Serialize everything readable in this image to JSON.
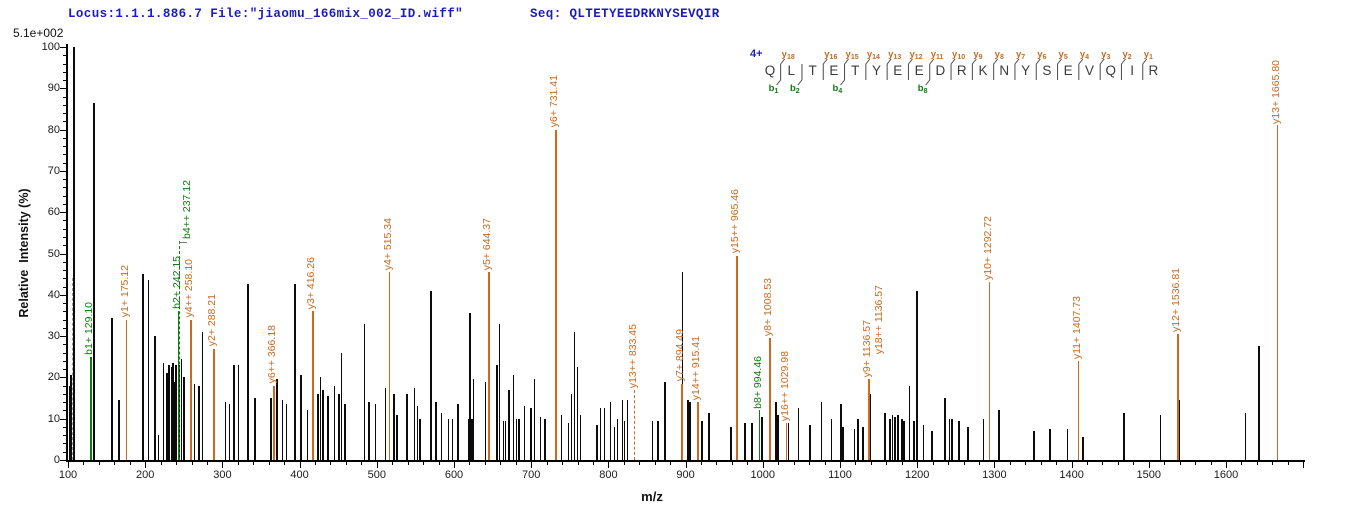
{
  "header": {
    "locus_file": "Locus:1.1.1.886.7 File:\"jiaomu_166mix_002_ID.wiff\"",
    "seq": "Seq: QLTETYEEDRKNYSEVQIR"
  },
  "y_axis": {
    "title": "Relative  Intensity (%)",
    "scale_note": "5.1e+002",
    "min": 0,
    "max": 100,
    "major": 10,
    "minor": 2
  },
  "x_axis": {
    "title": "m/z",
    "min": 100,
    "max": 1700,
    "major": 100,
    "minor": 20,
    "last_label": 1600
  },
  "peptide": {
    "charge": "4+",
    "residues": [
      "Q",
      "L",
      "T",
      "E",
      "T",
      "Y",
      "E",
      "E",
      "D",
      "R",
      "K",
      "N",
      "Y",
      "S",
      "E",
      "V",
      "Q",
      "I",
      "R"
    ],
    "gaps": [
      {
        "y": 18,
        "b": 1
      },
      {
        "y": null,
        "b": 2
      },
      {
        "y": 16,
        "b": null
      },
      {
        "y": 15,
        "b": 4
      },
      {
        "y": 14,
        "b": null
      },
      {
        "y": 13,
        "b": null
      },
      {
        "y": 12,
        "b": null
      },
      {
        "y": 11,
        "b": 8
      },
      {
        "y": 10,
        "b": null
      },
      {
        "y": 9,
        "b": null
      },
      {
        "y": 8,
        "b": null
      },
      {
        "y": 7,
        "b": null
      },
      {
        "y": 6,
        "b": null
      },
      {
        "y": 5,
        "b": null
      },
      {
        "y": 4,
        "b": null
      },
      {
        "y": 3,
        "b": null
      },
      {
        "y": 2,
        "b": null
      },
      {
        "y": 1,
        "b": null
      }
    ]
  },
  "colors": {
    "orange": "#c96a1f",
    "green": "#0d7d0d",
    "blue": "#1c1cb8",
    "gray": "#9a9a9a",
    "black": "#0b0b0b"
  },
  "chart_data": {
    "type": "mass-spectrum",
    "xlabel": "m/z",
    "ylabel": "Relative  Intensity (%)",
    "xlim": [
      100,
      1700
    ],
    "ylim": [
      0,
      100
    ],
    "base_peak_intensity": "5.1e+002",
    "peaks": [
      [
        102,
        18
      ],
      [
        104,
        20.5
      ],
      [
        108,
        100
      ],
      [
        134,
        86.5
      ],
      [
        157,
        34.5
      ],
      [
        166,
        14.5
      ],
      [
        197,
        45
      ],
      [
        204,
        43.5
      ],
      [
        213,
        30
      ],
      [
        217,
        6
      ],
      [
        224,
        23.5
      ],
      [
        228,
        21
      ],
      [
        231,
        23
      ],
      [
        234,
        22.5
      ],
      [
        236,
        23.5
      ],
      [
        238,
        19
      ],
      [
        240,
        23
      ],
      [
        244,
        23
      ],
      [
        247,
        24.5
      ],
      [
        250,
        20
      ],
      [
        264,
        18.5
      ],
      [
        270,
        18
      ],
      [
        274,
        31
      ],
      [
        304,
        14
      ],
      [
        309,
        13.5
      ],
      [
        315,
        23
      ],
      [
        321,
        23
      ],
      [
        333,
        42.5
      ],
      [
        342,
        15
      ],
      [
        363,
        15
      ],
      [
        371,
        19.5
      ],
      [
        378,
        14.5
      ],
      [
        383,
        13.5
      ],
      [
        394,
        42.5
      ],
      [
        402,
        20.5
      ],
      [
        410,
        12
      ],
      [
        424,
        16
      ],
      [
        427,
        20
      ],
      [
        430,
        17
      ],
      [
        437,
        15.5
      ],
      [
        445,
        18
      ],
      [
        451,
        16
      ],
      [
        454,
        26
      ],
      [
        459,
        13.5
      ],
      [
        484,
        33
      ],
      [
        490,
        14
      ],
      [
        498,
        13.5
      ],
      [
        511,
        17.5
      ],
      [
        522,
        16
      ],
      [
        526,
        11
      ],
      [
        539,
        16
      ],
      [
        549,
        17.5
      ],
      [
        553,
        13
      ],
      [
        556,
        10
      ],
      [
        570,
        41
      ],
      [
        577,
        14
      ],
      [
        584,
        11.5
      ],
      [
        593,
        10
      ],
      [
        598,
        10
      ],
      [
        605,
        13.5
      ],
      [
        619,
        10
      ],
      [
        621,
        35.5
      ],
      [
        623,
        10
      ],
      [
        625,
        19.5
      ],
      [
        641,
        19
      ],
      [
        656,
        23
      ],
      [
        659,
        33
      ],
      [
        664,
        9.5
      ],
      [
        667,
        9.5
      ],
      [
        671,
        17
      ],
      [
        677,
        20.5
      ],
      [
        681,
        10
      ],
      [
        684,
        10
      ],
      [
        691,
        13
      ],
      [
        700,
        12.5
      ],
      [
        704,
        19.5
      ],
      [
        712,
        10.5
      ],
      [
        718,
        10
      ],
      [
        739,
        11
      ],
      [
        748,
        9
      ],
      [
        752,
        16
      ],
      [
        756,
        31
      ],
      [
        760,
        22.5
      ],
      [
        764,
        11
      ],
      [
        785,
        8.5
      ],
      [
        790,
        12.5
      ],
      [
        795,
        12.5
      ],
      [
        803,
        14
      ],
      [
        808,
        8
      ],
      [
        812,
        10
      ],
      [
        818,
        14.5
      ],
      [
        821,
        9.5
      ],
      [
        825,
        14.5
      ],
      [
        857,
        9.5
      ],
      [
        864,
        9.5
      ],
      [
        873,
        19
      ],
      [
        896,
        45.5
      ],
      [
        903,
        14.5
      ],
      [
        906,
        14
      ],
      [
        921,
        9.5
      ],
      [
        930,
        11.5
      ],
      [
        959,
        8
      ],
      [
        977,
        9
      ],
      [
        986,
        9
      ],
      [
        999,
        10.5
      ],
      [
        1017,
        14
      ],
      [
        1020,
        11
      ],
      [
        1033,
        9
      ],
      [
        1046,
        12.5
      ],
      [
        1061,
        8.5
      ],
      [
        1076,
        14
      ],
      [
        1089,
        10
      ],
      [
        1101,
        13.5
      ],
      [
        1104,
        8
      ],
      [
        1119,
        7.5
      ],
      [
        1123,
        10
      ],
      [
        1130,
        8
      ],
      [
        1139,
        16
      ],
      [
        1158,
        11.5
      ],
      [
        1165,
        10
      ],
      [
        1168,
        11
      ],
      [
        1171,
        10.5
      ],
      [
        1175,
        11
      ],
      [
        1180,
        10
      ],
      [
        1183,
        9.5
      ],
      [
        1190,
        18
      ],
      [
        1196,
        9.5
      ],
      [
        1200,
        41
      ],
      [
        1208,
        8.5
      ],
      [
        1219,
        7
      ],
      [
        1236,
        15
      ],
      [
        1242,
        10
      ],
      [
        1245,
        10
      ],
      [
        1254,
        9.5
      ],
      [
        1266,
        8
      ],
      [
        1286,
        10
      ],
      [
        1306,
        12
      ],
      [
        1351,
        7
      ],
      [
        1372,
        7.5
      ],
      [
        1395,
        7.5
      ],
      [
        1415,
        5.5
      ],
      [
        1468,
        11.4
      ],
      [
        1515,
        11
      ],
      [
        1540,
        14.5
      ],
      [
        1625,
        11.5
      ],
      [
        1643,
        27.5
      ]
    ],
    "annotations": [
      {
        "label": "",
        "mz": 105,
        "pct": 44,
        "color": "gray",
        "dashed": true
      },
      {
        "label": "b1+ 129.10",
        "mz": 129.1,
        "pct": 25,
        "color": "green"
      },
      {
        "label": "y1+ 175.12",
        "mz": 175.12,
        "pct": 34,
        "color": "orange"
      },
      {
        "label": "b4++ 237.12",
        "mz": 237.12,
        "pct": 53,
        "color": "green",
        "dashed": true,
        "line_dx": 5,
        "label_dx": 14
      },
      {
        "label": "b2+ 242.15",
        "mz": 242.15,
        "pct": 36,
        "color": "green",
        "connector_at_pct": 52.5
      },
      {
        "label": "y4++ 258.10",
        "mz": 258.1,
        "pct": 34,
        "color": "orange"
      },
      {
        "label": "y2+ 288.21",
        "mz": 288.21,
        "pct": 27,
        "color": "orange"
      },
      {
        "label": "y6++ 366.18",
        "mz": 366.18,
        "pct": 18,
        "color": "orange"
      },
      {
        "label": "y3+ 416.26",
        "mz": 416.26,
        "pct": 36,
        "color": "orange"
      },
      {
        "label": "y4+ 515.34",
        "mz": 515.34,
        "pct": 45.5,
        "color": "orange"
      },
      {
        "label": "y5+ 644.37",
        "mz": 644.37,
        "pct": 45.5,
        "color": "orange"
      },
      {
        "label": "y6+ 731.41",
        "mz": 731.41,
        "pct": 80,
        "color": "orange"
      },
      {
        "label": "y13++ 833.45",
        "mz": 833.45,
        "pct": 17,
        "color": "orange",
        "dashed": true
      },
      {
        "label": "y7+ 894.49",
        "mz": 894.49,
        "pct": 18.5,
        "color": "orange"
      },
      {
        "label": "y14++ 915.41",
        "mz": 915.41,
        "pct": 14,
        "color": "orange"
      },
      {
        "label": "y15++ 965.46",
        "mz": 965.46,
        "pct": 49.5,
        "color": "orange"
      },
      {
        "label": "b8+ 994.46",
        "mz": 994.46,
        "pct": 12,
        "color": "green"
      },
      {
        "label": "y8+ 1008.53",
        "mz": 1008.53,
        "pct": 29.5,
        "color": "orange"
      },
      {
        "label": "y16++ 1029.98",
        "mz": 1029.98,
        "pct": 9,
        "color": "orange"
      },
      {
        "label": "y9+ 1136.57",
        "mz": 1136.57,
        "pct": 19.5,
        "color": "orange"
      },
      {
        "label": "y18++ 1136.57",
        "mz": 1136.57,
        "pct": 0,
        "color": "orange",
        "no_line": true,
        "label_dx": 12,
        "label_bottom_pct": 25
      },
      {
        "label": "y10+ 1292.72",
        "mz": 1292.72,
        "pct": 43,
        "color": "orange"
      },
      {
        "label": "y11+ 1407.73",
        "mz": 1407.73,
        "pct": 24,
        "color": "orange"
      },
      {
        "label": "y12+ 1536.81",
        "mz": 1536.81,
        "pct": 30.5,
        "color": "orange"
      },
      {
        "label": "y13+ 1665.80",
        "mz": 1665.8,
        "pct": 81,
        "color": "orange"
      }
    ]
  }
}
